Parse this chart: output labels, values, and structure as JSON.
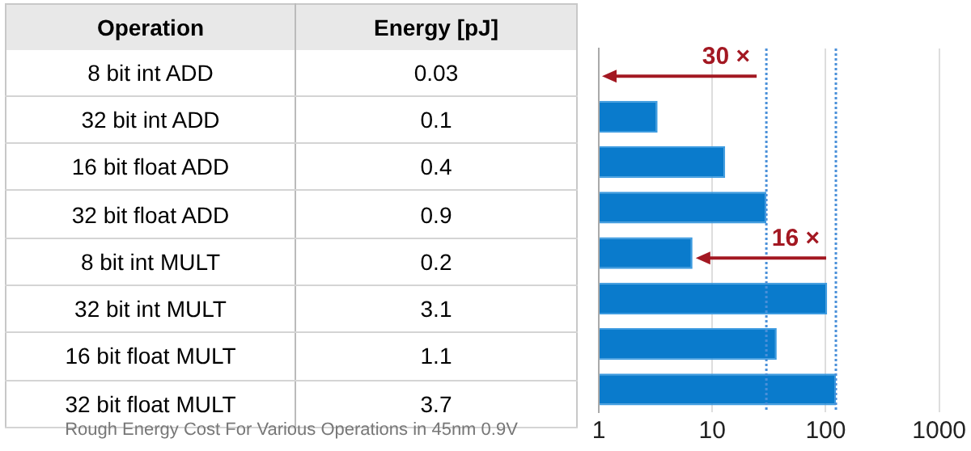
{
  "chart_data": [
    {
      "type": "other",
      "annotations": [
        "Operation",
        "Energy [pJ]",
        "Rough Energy Cost For Various Operations in 45nm 0.9V"
      ],
      "categories": [
        "8 bit int ADD",
        "32 bit int ADD",
        "16 bit float ADD",
        "32 bit float ADD",
        "8 bit int MULT",
        "32 bit int MULT",
        "16 bit float MULT",
        "32 bit float MULT"
      ],
      "values": [
        0.03,
        0.1,
        0.4,
        0.9,
        0.2,
        3.1,
        1.1,
        3.7
      ],
      "data_labels": true
    },
    {
      "type": "bar",
      "orientation": "horizontal",
      "log": "x",
      "tick_labels": "x",
      "categories": [
        "8 bit int ADD",
        "32 bit int ADD",
        "16 bit float ADD",
        "32 bit float ADD",
        "8 bit int MULT",
        "32 bit int MULT",
        "16 bit float MULT",
        "32 bit float MULT"
      ],
      "values": [
        1,
        3.3,
        13,
        30,
        6.7,
        103,
        37,
        123
      ],
      "color": "#0a7bcc",
      "xlim": [
        1,
        1000
      ],
      "xticks": [
        1,
        10,
        100,
        1000
      ],
      "grid": "x",
      "ref_lines": [
        {
          "axis": "x",
          "value": 30,
          "color": "#4a90d9",
          "line_style": "dotted"
        },
        {
          "axis": "x",
          "value": 123,
          "color": "#4a90d9",
          "line_style": "dotted"
        }
      ],
      "annotations": [
        {
          "text": "30 ×",
          "x": 30,
          "y": "8 bit int ADD"
        },
        {
          "text": "16 ×",
          "x": 123,
          "y": "8 bit int MULT"
        }
      ]
    }
  ]
}
